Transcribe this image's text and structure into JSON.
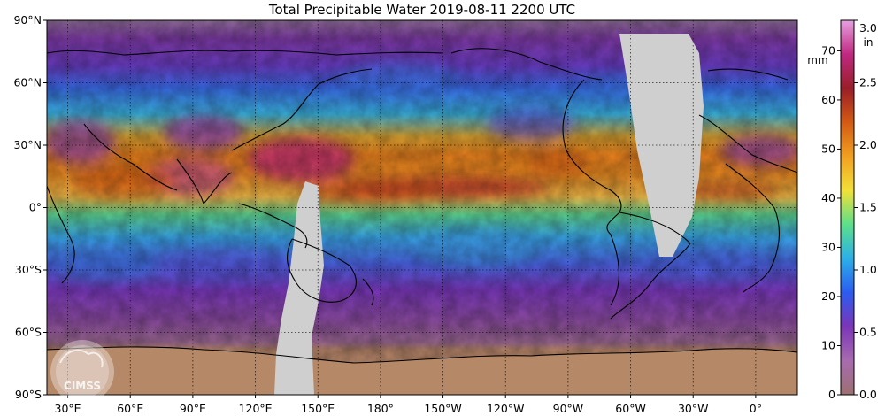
{
  "title": "Total Precipitable Water  2019-08-11 2200 UTC",
  "lat_labels": [
    "90°N",
    "60°N",
    "30°N",
    "0°",
    "30°S",
    "60°S",
    "90°S"
  ],
  "lon_labels": [
    "30°E",
    "60°E",
    "90°E",
    "120°E",
    "150°E",
    "180°",
    "150°W",
    "120°W",
    "90°W",
    "60°W",
    "30°W",
    "0°"
  ],
  "colorbar": {
    "unit_left": "mm",
    "unit_right": "in",
    "mm_ticks": [
      "0",
      "10",
      "20",
      "30",
      "40",
      "50",
      "60",
      "70"
    ],
    "in_ticks": [
      "0.0",
      "0.5",
      "1.0",
      "1.5",
      "2.0",
      "2.5",
      "3.0"
    ],
    "colors": [
      "#9c7070",
      "#a86bb0",
      "#7b35b8",
      "#2b5cf0",
      "#2bb0e8",
      "#5ce08a",
      "#f2e038",
      "#f2a020",
      "#d45a14",
      "#9a1e28",
      "#c02880",
      "#e6a0e0"
    ]
  },
  "logo_text": "CIMSS",
  "colors": {
    "no_data": "#cfcfcf",
    "antarctica": "#b5876a",
    "dry": "#8d3f9f",
    "moist": "#f09a24",
    "wet": "#c85618"
  }
}
